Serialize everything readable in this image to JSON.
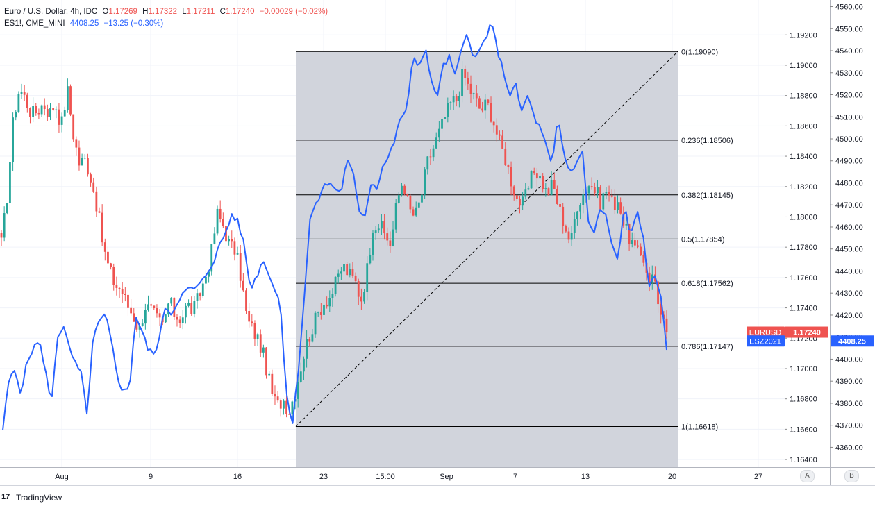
{
  "legend": {
    "main": {
      "symbol": "Euro / U.S. Dollar, 4h, IDC",
      "o_label": "O",
      "o": "1.17269",
      "h_label": "H",
      "h": "1.17322",
      "l_label": "L",
      "l": "1.17211",
      "c_label": "C",
      "c": "1.17240",
      "change": "−0.00029 (−0.02%)"
    },
    "compare": {
      "symbol": "ES1!, CME_MINI",
      "value": "4408.25",
      "change": "−13.25 (−0.30%)"
    }
  },
  "colors": {
    "up": "#26a69a",
    "down": "#ef5350",
    "compare_line": "#2962ff",
    "fib_zone": "#d1d4dc",
    "grid": "#f0f3fa",
    "eurusd_badge": "#ef5350",
    "es_badge": "#2962ff"
  },
  "badges": {
    "eurusd_label": "EURUSD",
    "eurusd_value": "1.17240",
    "es_label": "ESZ2021",
    "es_value": "4408.25"
  },
  "scale_buttons": {
    "a": "A",
    "b": "B"
  },
  "footer": {
    "logo": "17",
    "brand": "TradingView"
  },
  "chart_data": {
    "type": "candlestick+line",
    "x_labels": [
      "Aug",
      "9",
      "16",
      "23",
      "15:00",
      "Sep",
      "7",
      "13",
      "20",
      "27"
    ],
    "price_axis": {
      "ticks": [
        "1.19200",
        "1.19000",
        "1.18800",
        "1.18600",
        "1.18400",
        "1.18200",
        "1.18000",
        "1.17800",
        "1.17600",
        "1.17400",
        "1.17200",
        "1.17000",
        "1.16800",
        "1.16600",
        "1.16400"
      ],
      "range": [
        1.1635,
        1.1943
      ]
    },
    "compare_axis": {
      "ticks": [
        "4560.00",
        "4550.00",
        "4540.00",
        "4530.00",
        "4520.00",
        "4510.00",
        "4500.00",
        "4490.00",
        "4480.00",
        "4470.00",
        "4460.00",
        "4450.00",
        "4440.00",
        "4430.00",
        "4420.00",
        "4410.00",
        "4400.00",
        "4390.00",
        "4380.00",
        "4370.00",
        "4360.00"
      ],
      "range": [
        4351,
        4563
      ]
    },
    "fibonacci": {
      "start_price": 1.16618,
      "end_price": 1.1909,
      "levels": [
        {
          "ratio": "0",
          "price": "1.19090"
        },
        {
          "ratio": "0.236",
          "price": "1.18506"
        },
        {
          "ratio": "0.382",
          "price": "1.18145"
        },
        {
          "ratio": "0.5",
          "price": "1.17854"
        },
        {
          "ratio": "0.618",
          "price": "1.17562"
        },
        {
          "ratio": "0.786",
          "price": "1.17147"
        },
        {
          "ratio": "1",
          "price": "1.16618"
        }
      ]
    },
    "eurusd_close_keypoints": [
      1.1782,
      1.1815,
      1.1865,
      1.1885,
      1.1878,
      1.1868,
      1.187,
      1.1875,
      1.1868,
      1.1875,
      1.186,
      1.1884,
      1.1855,
      1.1835,
      1.1838,
      1.1825,
      1.1806,
      1.178,
      1.1765,
      1.1755,
      1.1752,
      1.1742,
      1.1735,
      1.1725,
      1.1742,
      1.1738,
      1.1732,
      1.1728,
      1.1745,
      1.1735,
      1.1733,
      1.1742,
      1.1738,
      1.1748,
      1.176,
      1.1775,
      1.1802,
      1.1795,
      1.1782,
      1.1778,
      1.176,
      1.1732,
      1.1725,
      1.1718,
      1.1705,
      1.1685,
      1.1675,
      1.168,
      1.1672,
      1.1685,
      1.1702,
      1.1718,
      1.1728,
      1.1738,
      1.1745,
      1.1748,
      1.1758,
      1.1768,
      1.1762,
      1.1758,
      1.1745,
      1.1765,
      1.1795,
      1.1795,
      1.1788,
      1.1782,
      1.181,
      1.1825,
      1.1805,
      1.18,
      1.1812,
      1.1835,
      1.1845,
      1.1855,
      1.1866,
      1.1875,
      1.1878,
      1.1895,
      1.1885,
      1.1878,
      1.187,
      1.1875,
      1.1865,
      1.185,
      1.184,
      1.1825,
      1.1812,
      1.1808,
      1.182,
      1.1832,
      1.1825,
      1.1815,
      1.1822,
      1.1806,
      1.1795,
      1.1782,
      1.1808,
      1.1815,
      1.1822,
      1.1818,
      1.181,
      1.1818,
      1.1808,
      1.1812,
      1.1792,
      1.1785,
      1.1775,
      1.1775,
      1.176,
      1.176,
      1.1735,
      1.1724
    ],
    "es_close_keypoints": [
      4368,
      4390,
      4395,
      4385,
      4398,
      4405,
      4408,
      4397,
      4378,
      4410,
      4415,
      4405,
      4398,
      4393,
      4375,
      4410,
      4417,
      4420,
      4408,
      4392,
      4385,
      4387,
      4420,
      4413,
      4405,
      4402,
      4410,
      4425,
      4420,
      4427,
      4430,
      4432,
      4432,
      4435,
      4440,
      4445,
      4452,
      4458,
      4466,
      4462,
      4452,
      4432,
      4437,
      4445,
      4440,
      4432,
      4425,
      4385,
      4370,
      4396,
      4430,
      4466,
      4470,
      4478,
      4480,
      4478,
      4475,
      4490,
      4485,
      4468,
      4465,
      4480,
      4478,
      4488,
      4492,
      4500,
      4510,
      4514,
      4537,
      4533,
      4542,
      4525,
      4520,
      4533,
      4537,
      4528,
      4540,
      4550,
      4535,
      4540,
      4546,
      4552,
      4540,
      4530,
      4520,
      4524,
      4512,
      4520,
      4510,
      4505,
      4497,
      4487,
      4510,
      4492,
      4485,
      4488,
      4497,
      4462,
      4458,
      4468,
      4465,
      4450,
      4445,
      4470,
      4455,
      4468,
      4458,
      4432,
      4440,
      4428,
      4405
    ]
  }
}
